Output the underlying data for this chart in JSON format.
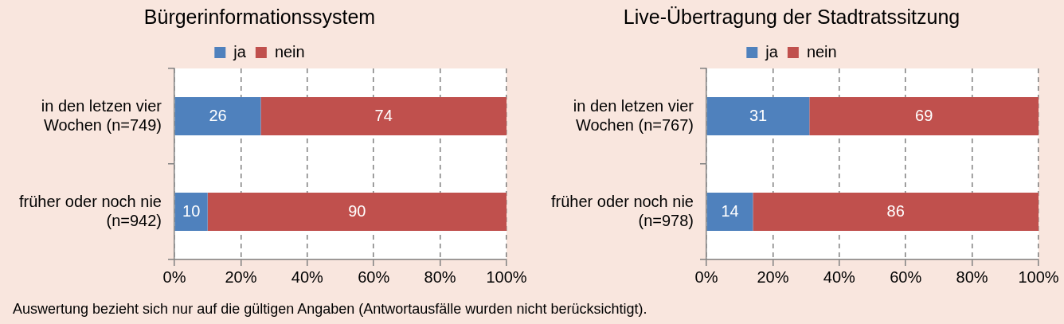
{
  "chart_data": [
    {
      "type": "bar",
      "orientation": "horizontal",
      "stacked": true,
      "title": "Bürgerinformationssystem",
      "categories": [
        "in den letzen vier Wochen (n=749)",
        "früher oder noch nie (n=942)"
      ],
      "series": [
        {
          "name": "ja",
          "color": "#4f81bd",
          "values": [
            26,
            10
          ]
        },
        {
          "name": "nein",
          "color": "#c0504d",
          "values": [
            74,
            90
          ]
        }
      ],
      "xlim": [
        0,
        100
      ],
      "xticks": [
        {
          "value": 0,
          "label": "0%"
        },
        {
          "value": 20,
          "label": "20%"
        },
        {
          "value": 40,
          "label": "40%"
        },
        {
          "value": 60,
          "label": "60%"
        },
        {
          "value": 80,
          "label": "80%"
        },
        {
          "value": 100,
          "label": "100%"
        }
      ],
      "grid": "x",
      "legend": "top",
      "data_labels": true,
      "annotations": [
        "Auswertung bezieht sich nur auf die gültigen Angaben (Antwortausfälle wurden nicht berücksichtigt)."
      ]
    },
    {
      "type": "bar",
      "orientation": "horizontal",
      "stacked": true,
      "title": "Live-Übertragung der Stadtratssitzung",
      "categories": [
        "in den letzen vier Wochen (n=767)",
        "früher oder noch nie (n=978)"
      ],
      "series": [
        {
          "name": "ja",
          "color": "#4f81bd",
          "values": [
            31,
            14
          ]
        },
        {
          "name": "nein",
          "color": "#c0504d",
          "values": [
            69,
            86
          ]
        }
      ],
      "xlim": [
        0,
        100
      ],
      "xticks": [
        {
          "value": 0,
          "label": "0%"
        },
        {
          "value": 20,
          "label": "20%"
        },
        {
          "value": 40,
          "label": "40%"
        },
        {
          "value": 60,
          "label": "60%"
        },
        {
          "value": 80,
          "label": "80%"
        },
        {
          "value": 100,
          "label": "100%"
        }
      ],
      "grid": "x",
      "legend": "top",
      "data_labels": true
    }
  ]
}
